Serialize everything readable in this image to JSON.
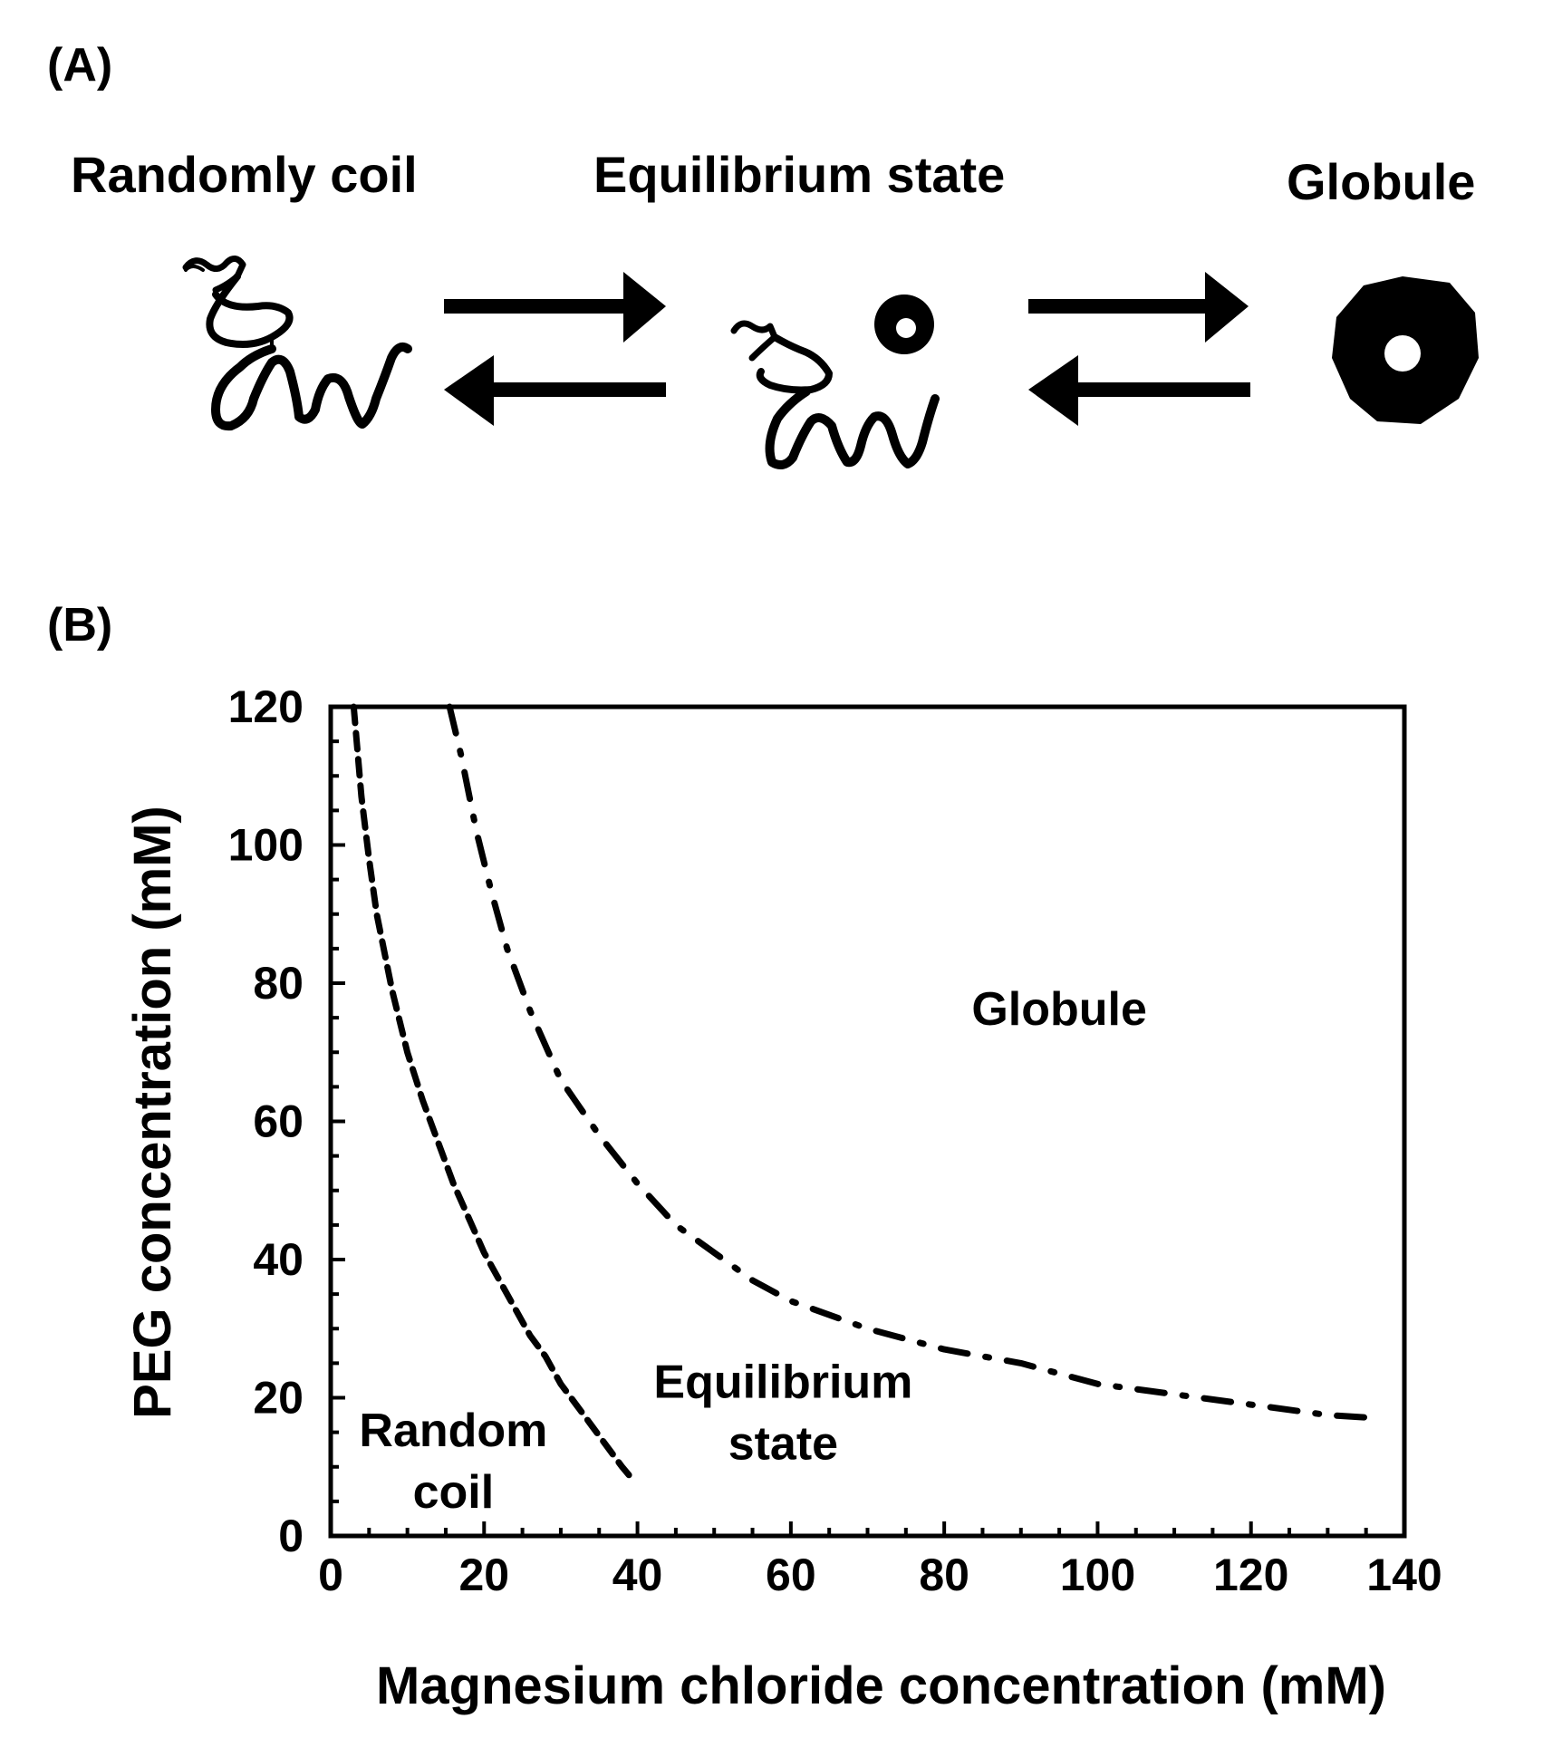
{
  "panels": {
    "a_label": "(A)",
    "b_label": "(B)"
  },
  "schematic": {
    "states": [
      {
        "label": "Randomly coil",
        "icon": "random-coil-icon"
      },
      {
        "label": "Equilibrium state",
        "icon": "equilibrium-icon"
      },
      {
        "label": "Globule",
        "icon": "globule-icon"
      }
    ],
    "arrows": [
      "forward-arrow",
      "reverse-arrow"
    ]
  },
  "chart_data": {
    "type": "line",
    "title": "",
    "xlabel": "Magnesium chloride concentration (mM)",
    "ylabel": "PEG concentration (mM)",
    "xlim": [
      0,
      140
    ],
    "ylim": [
      0,
      120
    ],
    "x_ticks": [
      0,
      20,
      40,
      60,
      80,
      100,
      120,
      140
    ],
    "y_ticks": [
      0,
      20,
      40,
      60,
      80,
      100,
      120
    ],
    "grid": false,
    "legend": "none",
    "series": [
      {
        "style": "dashed",
        "x": [
          3,
          4,
          5,
          6,
          8,
          10,
          12,
          14,
          16,
          18,
          20,
          22,
          24,
          26,
          28,
          30,
          32,
          34,
          36,
          38,
          39.5
        ],
        "y": [
          120,
          107,
          98,
          90,
          79,
          70,
          63,
          57,
          51,
          46,
          41,
          37,
          33,
          29,
          26,
          22,
          19,
          16,
          13,
          10,
          8
        ]
      },
      {
        "style": "dash-dot",
        "x": [
          15.5,
          17,
          19,
          21,
          23,
          26,
          30,
          35,
          40,
          45,
          50,
          55,
          60,
          70,
          80,
          90,
          100,
          110,
          120,
          130,
          137
        ],
        "y": [
          120,
          113,
          102,
          93,
          85,
          76,
          66,
          58,
          51,
          45,
          41,
          37,
          34,
          30,
          27,
          25,
          22,
          20.5,
          19,
          17.5,
          17
        ]
      }
    ],
    "annotations": [
      {
        "lines": [
          "Globule"
        ],
        "x": 95,
        "y": 74
      },
      {
        "lines": [
          "Equilibrium",
          "state"
        ],
        "x": 59,
        "y": 20
      },
      {
        "lines": [
          "Random",
          "coil"
        ],
        "x": 16,
        "y": 13
      }
    ]
  }
}
